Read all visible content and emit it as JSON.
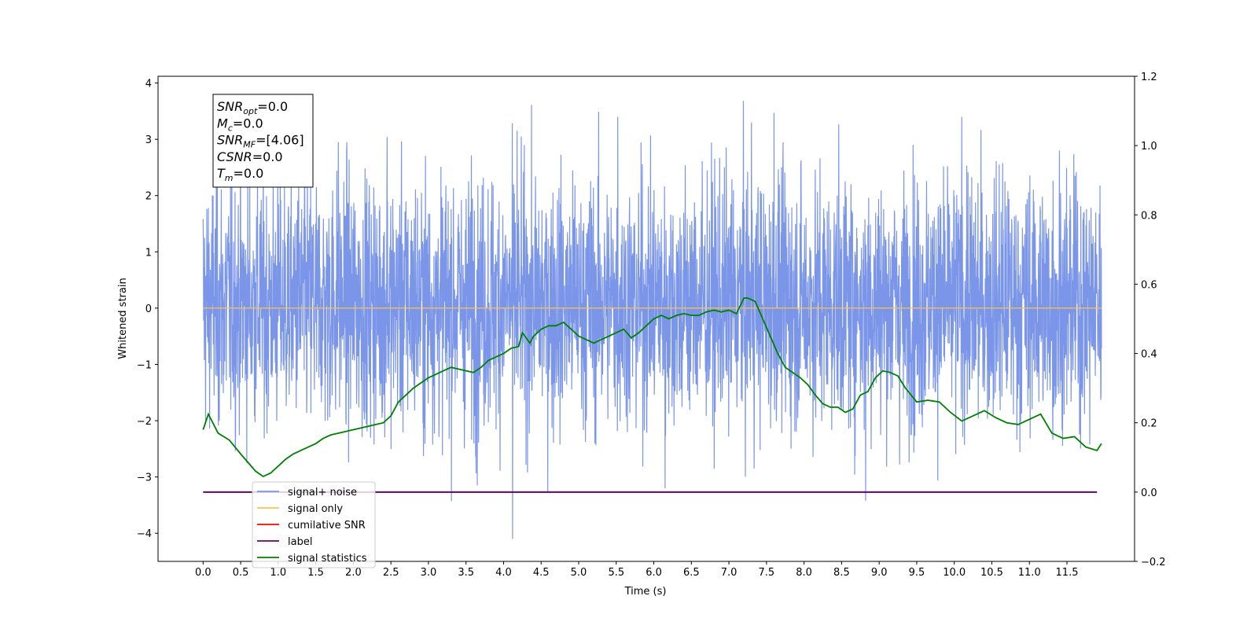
{
  "chart_data": {
    "type": "line",
    "xlabel": "Time (s)",
    "ylabel": "Whitened strain",
    "xlim": [
      -0.6,
      12.4
    ],
    "ylim": [
      -4.5,
      4.12
    ],
    "y2lim": [
      -0.2,
      1.2
    ],
    "grid": false,
    "legend_position": "lower-left",
    "x_ticks": [
      "0.0",
      "0.5",
      "1.0",
      "1.5",
      "2.0",
      "2.5",
      "3.0",
      "3.5",
      "4.0",
      "4.5",
      "5.0",
      "5.5",
      "6.0",
      "6.5",
      "7.0",
      "7.5",
      "8.0",
      "8.5",
      "9.0",
      "9.5",
      "10.0",
      "10.5",
      "11.0",
      "11.5"
    ],
    "y_ticks": [
      "4",
      "3",
      "2",
      "1",
      "0",
      "−1",
      "−2",
      "−3",
      "−4"
    ],
    "y2_ticks": [
      "1.2",
      "1.0",
      "0.8",
      "0.6",
      "0.4",
      "0.2",
      "0.0",
      "−0.2"
    ],
    "stats_box": [
      {
        "base": "SNR",
        "sub": "opt",
        "rest": "=0.0"
      },
      {
        "base": "M",
        "sub": "c",
        "rest": "=0.0"
      },
      {
        "base": "SNR",
        "sub": "MF",
        "rest": "=[4.06]"
      },
      {
        "base": "CSNR",
        "sub": "",
        "rest": "=0.0"
      },
      {
        "base": "T",
        "sub": "m",
        "rest": "=0.0"
      }
    ],
    "series": [
      {
        "name": "signal+ noise",
        "color": "#7b96e8",
        "axis": "left",
        "kind": "noise",
        "t_range": [
          0.0,
          11.96
        ],
        "typical_range": [
          -2.0,
          2.2
        ],
        "notable_peaks": [
          [
            1.8,
            2.95
          ],
          [
            2.45,
            3.04
          ],
          [
            4.18,
            3.15
          ],
          [
            5.52,
            3.4
          ],
          [
            7.3,
            3.3
          ],
          [
            7.6,
            3.47
          ],
          [
            10.1,
            3.4
          ],
          [
            11.4,
            2.8
          ],
          [
            4.12,
            -4.1
          ],
          [
            8.82,
            -3.42
          ],
          [
            3.65,
            -3.15
          ],
          [
            6.15,
            -3.2
          ]
        ]
      },
      {
        "name": "signal only",
        "color": "#ffc04d",
        "axis": "left",
        "x": [
          0.0,
          11.96
        ],
        "y": [
          0.0,
          0.0
        ]
      },
      {
        "name": "cumilative SNR",
        "color": "#ff0000",
        "axis": "right",
        "x": [],
        "y": []
      },
      {
        "name": "label",
        "color": "#6a006a",
        "axis": "right",
        "x": [
          0.0,
          11.9
        ],
        "y": [
          0.0,
          0.0
        ]
      },
      {
        "name": "signal statistics",
        "color": "#008000",
        "axis": "right",
        "x": [
          0.0,
          0.07,
          0.2,
          0.35,
          0.5,
          0.6,
          0.7,
          0.8,
          0.9,
          1.0,
          1.1,
          1.2,
          1.3,
          1.4,
          1.5,
          1.6,
          1.7,
          1.8,
          1.9,
          2.0,
          2.1,
          2.2,
          2.3,
          2.4,
          2.5,
          2.6,
          2.7,
          2.8,
          2.9,
          3.0,
          3.1,
          3.2,
          3.3,
          3.4,
          3.5,
          3.6,
          3.7,
          3.8,
          3.9,
          4.0,
          4.1,
          4.2,
          4.25,
          4.35,
          4.4,
          4.5,
          4.6,
          4.7,
          4.8,
          4.9,
          5.0,
          5.1,
          5.2,
          5.3,
          5.4,
          5.5,
          5.6,
          5.7,
          5.8,
          5.9,
          6.0,
          6.1,
          6.2,
          6.3,
          6.4,
          6.5,
          6.6,
          6.7,
          6.8,
          6.9,
          7.0,
          7.1,
          7.2,
          7.25,
          7.35,
          7.45,
          7.55,
          7.65,
          7.75,
          7.85,
          7.95,
          8.05,
          8.15,
          8.25,
          8.35,
          8.45,
          8.55,
          8.65,
          8.75,
          8.85,
          8.95,
          9.05,
          9.15,
          9.25,
          9.35,
          9.5,
          9.65,
          9.8,
          9.95,
          10.1,
          10.25,
          10.4,
          10.55,
          10.7,
          10.85,
          11.0,
          11.15,
          11.3,
          11.45,
          11.6,
          11.75,
          11.9,
          11.96
        ],
        "y": [
          0.18,
          0.225,
          0.17,
          0.15,
          0.11,
          0.085,
          0.06,
          0.045,
          0.055,
          0.075,
          0.095,
          0.11,
          0.12,
          0.13,
          0.14,
          0.155,
          0.165,
          0.17,
          0.175,
          0.18,
          0.185,
          0.19,
          0.195,
          0.2,
          0.22,
          0.26,
          0.28,
          0.3,
          0.315,
          0.33,
          0.34,
          0.35,
          0.36,
          0.355,
          0.35,
          0.345,
          0.36,
          0.38,
          0.39,
          0.4,
          0.415,
          0.42,
          0.46,
          0.43,
          0.45,
          0.47,
          0.48,
          0.48,
          0.49,
          0.47,
          0.45,
          0.44,
          0.43,
          0.44,
          0.45,
          0.46,
          0.47,
          0.445,
          0.46,
          0.48,
          0.5,
          0.51,
          0.5,
          0.51,
          0.515,
          0.51,
          0.51,
          0.52,
          0.525,
          0.52,
          0.525,
          0.515,
          0.56,
          0.56,
          0.55,
          0.5,
          0.45,
          0.4,
          0.36,
          0.345,
          0.33,
          0.31,
          0.28,
          0.255,
          0.245,
          0.245,
          0.23,
          0.24,
          0.28,
          0.29,
          0.33,
          0.35,
          0.345,
          0.335,
          0.3,
          0.26,
          0.265,
          0.26,
          0.23,
          0.205,
          0.22,
          0.235,
          0.215,
          0.2,
          0.195,
          0.21,
          0.225,
          0.17,
          0.155,
          0.16,
          0.13,
          0.12,
          0.14
        ]
      }
    ]
  }
}
